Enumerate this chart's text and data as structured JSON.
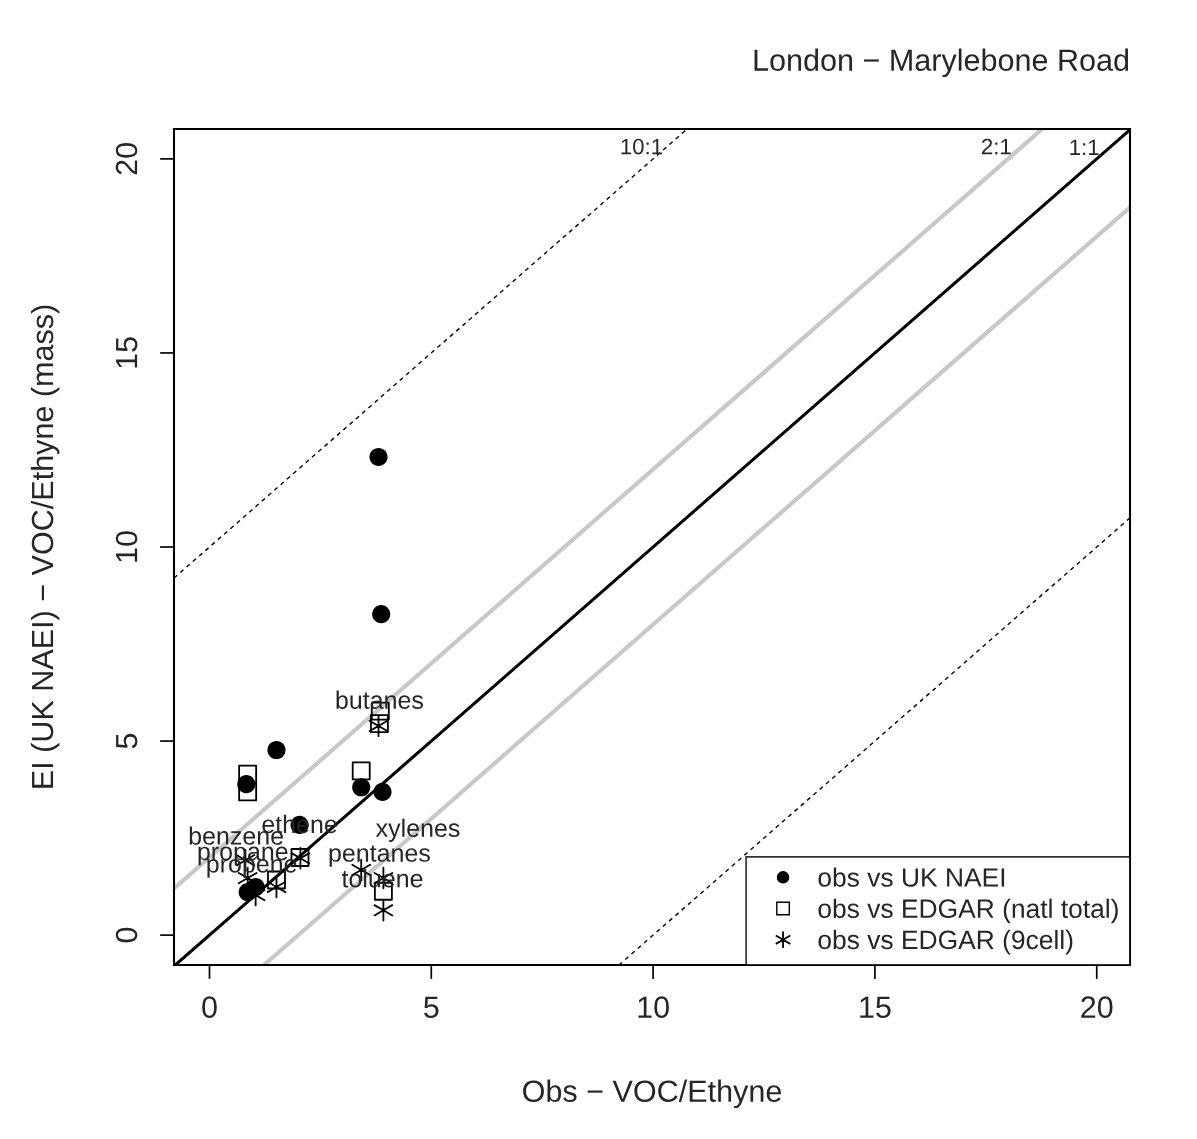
{
  "chart_data": {
    "type": "scatter",
    "title": "London − Marylebone Road",
    "xlabel": "Obs − VOC/Ethyne",
    "ylabel": "EI (UK NAEI) − VOC/Ethyne (mass)",
    "xlim": [
      -0.8,
      20.75
    ],
    "ylim": [
      -0.77,
      20.77
    ],
    "xticks": [
      0,
      5,
      10,
      15,
      20
    ],
    "yticks": [
      0,
      5,
      10,
      15,
      20
    ],
    "grid": false,
    "legend": "bottom right",
    "series": [
      {
        "type": "line",
        "name": "10:1",
        "color": "#000000",
        "line_style": "dotted",
        "marker": "none",
        "x": [
          -0.8,
          10.77
        ],
        "values": [
          9.2,
          20.77
        ]
      },
      {
        "type": "line",
        "name": "2:1",
        "color": "#c8c8c8",
        "line_style": "solid",
        "marker": "none",
        "x": [
          -0.8,
          18.77
        ],
        "values": [
          1.2,
          20.77
        ]
      },
      {
        "type": "line",
        "name": "1:1",
        "color": "#000000",
        "line_style": "solid",
        "marker": "none",
        "x": [
          -0.77,
          20.75
        ],
        "values": [
          -0.77,
          20.75
        ]
      },
      {
        "type": "line",
        "color": "#c8c8c8",
        "line_style": "solid",
        "marker": "none",
        "x": [
          1.23,
          20.75
        ],
        "values": [
          -0.77,
          18.75
        ]
      },
      {
        "type": "line",
        "color": "#000000",
        "line_style": "dotted",
        "marker": "none",
        "x": [
          9.23,
          20.75
        ],
        "values": [
          -0.77,
          10.75
        ]
      },
      {
        "name": "obs vs UK NAEI",
        "color": "#000000",
        "marker": "circle",
        "x": [
          3.81,
          3.87,
          1.51,
          0.83,
          3.42,
          3.9,
          2.03,
          0.86,
          1.04
        ],
        "values": [
          12.32,
          8.27,
          4.77,
          3.89,
          3.81,
          3.69,
          2.84,
          1.11,
          1.24
        ]
      },
      {
        "name": "obs vs EDGAR (natl total)",
        "color": "#000000",
        "marker": "square",
        "x": [
          3.85,
          3.83,
          0.86,
          0.86,
          3.42,
          1.51,
          3.92,
          2.04
        ],
        "values": [
          5.77,
          5.45,
          4.15,
          3.69,
          4.23,
          1.42,
          1.13,
          2.0
        ]
      },
      {
        "name": "obs vs EDGAR (9cell)",
        "color": "#000000",
        "marker": "cross",
        "x": [
          3.81,
          3.92,
          3.42,
          0.86,
          1.04,
          1.51,
          2.05,
          3.92,
          0.81
        ],
        "values": [
          5.39,
          0.64,
          1.68,
          1.47,
          1.03,
          1.24,
          1.98,
          1.47,
          1.93
        ]
      }
    ],
    "annotations": [
      {
        "text": "butanes",
        "x": 3.83,
        "y": 6.0
      },
      {
        "text": "ethene",
        "x": 2.03,
        "y": 2.8
      },
      {
        "text": "benzene",
        "x": 0.6,
        "y": 2.5
      },
      {
        "text": "xylenes",
        "x": 4.7,
        "y": 2.7
      },
      {
        "text": "propane",
        "x": 0.75,
        "y": 2.1
      },
      {
        "text": "pentanes",
        "x": 3.83,
        "y": 2.06
      },
      {
        "text": "propene",
        "x": 0.95,
        "y": 1.78
      },
      {
        "text": "toluene",
        "x": 3.9,
        "y": 1.4
      }
    ]
  }
}
